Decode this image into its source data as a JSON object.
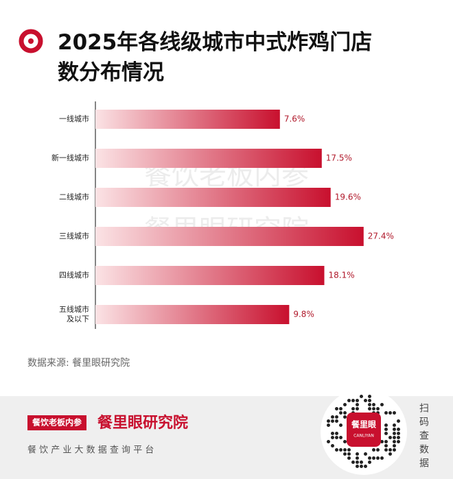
{
  "header": {
    "title": "2025年各线级城市中式炸鸡门店数分布情况"
  },
  "chart_data": {
    "type": "bar",
    "orientation": "horizontal",
    "categories": [
      "一线城市",
      "新一线城市",
      "二线城市",
      "三线城市",
      "四线城市",
      "五线城市\n及以下"
    ],
    "values": [
      7.6,
      17.5,
      19.6,
      27.4,
      18.1,
      9.8
    ],
    "value_labels": [
      "7.6%",
      "17.5%",
      "19.6%",
      "27.4%",
      "18.1%",
      "9.8%"
    ],
    "color": "#c8102e"
  },
  "watermark": [
    "餐饮老板内参",
    "餐里眼研究院"
  ],
  "source": "数据来源: 餐里眼研究院",
  "footer": {
    "brand": "餐饮老板内参",
    "institute": "餐里眼研究院",
    "slogan": "餐 饮 产 业 大 数 据 查 询 平 台",
    "qr_label": "餐里眼",
    "qr_sublabel": "CANLIYAN",
    "scan_text": "扫码查数据"
  }
}
